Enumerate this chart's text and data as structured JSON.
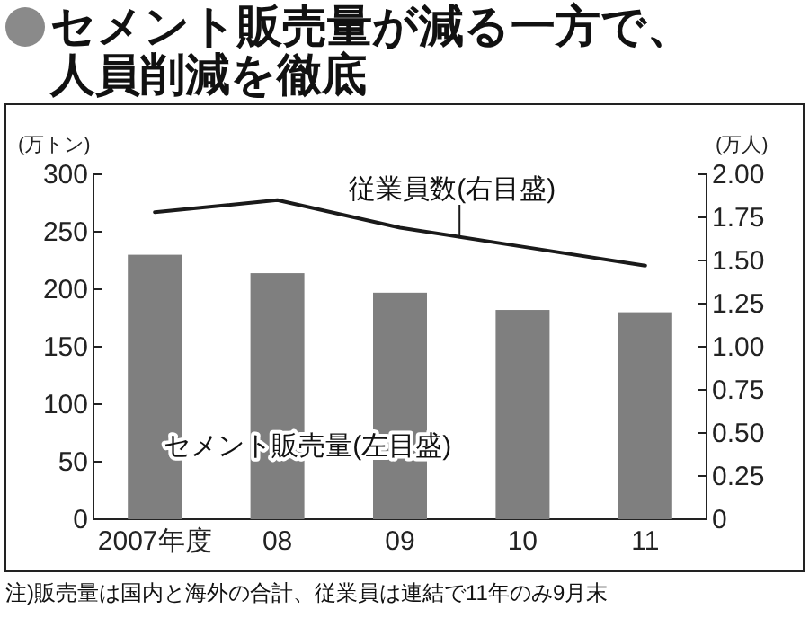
{
  "chart_data": {
    "type": "bar",
    "title": "セメント販売量が減る一方で、人員削減を徹底",
    "categories": [
      "2007年度",
      "08",
      "09",
      "10",
      "11"
    ],
    "series": [
      {
        "name": "セメント販売量(左目盛)",
        "color": "#7f7f7f",
        "values": [
          230,
          214,
          197,
          182,
          180
        ]
      },
      {
        "name": "従業員数(右目盛)",
        "type": "line",
        "axis": "y2",
        "color": "#1a1a1a",
        "values": [
          1.78,
          1.85,
          1.69,
          1.58,
          1.47
        ]
      }
    ],
    "ylabel": "(万トン)",
    "y2label": "(万人)",
    "ylim": [
      0,
      300
    ],
    "yticks": [
      0,
      50,
      100,
      150,
      200,
      250,
      300
    ],
    "y2lim": [
      0,
      2
    ],
    "y2ticks": [
      {
        "value": 0,
        "label": "0"
      },
      {
        "value": 0.25,
        "label": "0.25"
      },
      {
        "value": 0.5,
        "label": "0.50"
      },
      {
        "value": 0.75,
        "label": "0.75"
      },
      {
        "value": 1,
        "label": "1.00"
      },
      {
        "value": 1.25,
        "label": "1.25"
      },
      {
        "value": 1.5,
        "label": "1.50"
      },
      {
        "value": 1.75,
        "label": "1.75"
      },
      {
        "value": 2,
        "label": "2.00"
      }
    ],
    "annotations": [
      "注)販売量は国内と海外の合計、従業員は連結で11年のみ9月末"
    ]
  }
}
